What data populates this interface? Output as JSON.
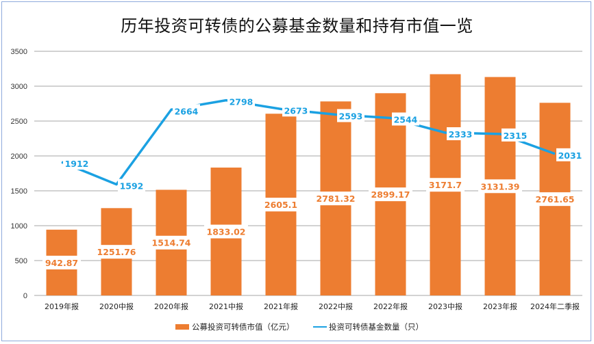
{
  "chart_data": {
    "type": "bar",
    "title": "历年投资可转债的公募基金数量和持有市值一览",
    "xlabel": "",
    "ylabel": "",
    "ylim": [
      0,
      3500
    ],
    "yticks": [
      0,
      500,
      1000,
      1500,
      2000,
      2500,
      3000,
      3500
    ],
    "grid": true,
    "legend_position": "bottom",
    "categories": [
      "2019年报",
      "2020中报",
      "2020年报",
      "2021中报",
      "2021年报",
      "2022中报",
      "2022年报",
      "2023中报",
      "2023年报",
      "2024年二季报"
    ],
    "series": [
      {
        "name": "公募投资可转债市值（亿元）",
        "type": "bar",
        "color": "#ED7D31",
        "values": [
          942.87,
          1251.76,
          1514.74,
          1833.02,
          2605.1,
          2781.32,
          2899.17,
          3171.7,
          3131.39,
          2761.65
        ],
        "labels": [
          "942.87",
          "1251.76",
          "1514.74",
          "1833.02",
          "2605.1",
          "2781.32",
          "2899.17",
          "3171.7",
          "3131.39",
          "2761.65"
        ]
      },
      {
        "name": "投资可转债基金数量（只）",
        "type": "line",
        "color": "#1BA1E2",
        "values": [
          1912,
          1592,
          2664,
          2798,
          2673,
          2593,
          2544,
          2333,
          2315,
          2031
        ],
        "labels": [
          "1912",
          "1592",
          "2664",
          "2798",
          "2673",
          "2593",
          "2544",
          "2333",
          "2315",
          "2031"
        ]
      }
    ]
  }
}
